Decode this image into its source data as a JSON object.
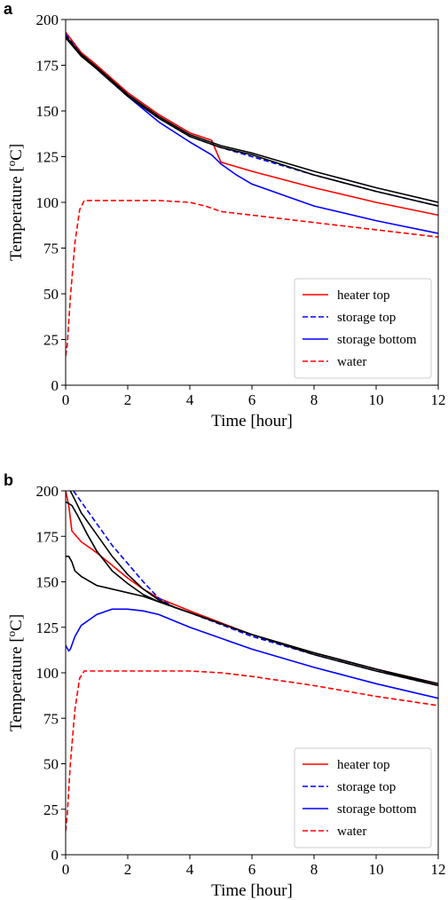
{
  "colors": {
    "red": "#ff0000",
    "blue": "#0000ff",
    "black": "#000000"
  },
  "chart_data": [
    {
      "panel_label": "a",
      "type": "line",
      "xlabel": "Time [hour]",
      "ylabel": "Temperature [°C]",
      "ylabel_main": "Temperature [",
      "ylabel_sup": "o",
      "ylabel_end": "C]",
      "xlim": [
        0,
        12
      ],
      "ylim": [
        0,
        200
      ],
      "xticks": [
        0,
        2,
        4,
        6,
        8,
        10,
        12
      ],
      "yticks": [
        0,
        25,
        50,
        75,
        100,
        125,
        150,
        175,
        200
      ],
      "legend_position": "lower-right",
      "series": [
        {
          "name": "heater top",
          "color": "red",
          "dash": "solid",
          "x": [
            0,
            0.5,
            1,
            2,
            3,
            4,
            4.7,
            5,
            6,
            8,
            10,
            12
          ],
          "y": [
            193,
            182,
            175,
            160,
            148,
            138,
            134,
            122,
            117,
            108,
            100,
            93
          ]
        },
        {
          "name": "storage top",
          "color": "blue",
          "dash": "dashed",
          "x": [
            0,
            0.5,
            1,
            2,
            3,
            4,
            5,
            6,
            8,
            10,
            12
          ],
          "y": [
            192,
            181,
            173,
            158,
            146,
            136,
            130,
            125,
            115,
            106,
            98
          ]
        },
        {
          "name": "storage bottom",
          "color": "blue",
          "dash": "solid",
          "x": [
            0,
            0.5,
            1,
            2,
            3,
            4,
            4.7,
            5,
            5.5,
            6,
            8,
            10,
            12
          ],
          "y": [
            190,
            181,
            173,
            158,
            144,
            133,
            126,
            121,
            115,
            110,
            98,
            90,
            83
          ]
        },
        {
          "name": "water",
          "color": "red",
          "dash": "dashed",
          "x": [
            0,
            0.05,
            0.15,
            0.3,
            0.45,
            0.6,
            1,
            2,
            3,
            4,
            4.5,
            5,
            6,
            8,
            10,
            12
          ],
          "y": [
            16,
            22,
            48,
            78,
            96,
            101,
            101,
            101,
            101,
            100,
            98,
            95,
            93,
            89,
            85,
            81
          ]
        },
        {
          "color": "black",
          "dash": "solid",
          "x": [
            0,
            0.5,
            1,
            2,
            3,
            4,
            5,
            6,
            8,
            10,
            12
          ],
          "y": [
            191,
            181,
            174,
            159,
            147,
            137,
            131,
            127,
            117,
            108,
            100
          ]
        },
        {
          "color": "black",
          "dash": "solid",
          "x": [
            0,
            0.5,
            1,
            2,
            3,
            4,
            5,
            6,
            8,
            10,
            12
          ],
          "y": [
            190,
            180,
            173,
            158,
            146,
            136,
            130,
            126,
            115,
            106,
            98
          ]
        }
      ]
    },
    {
      "panel_label": "b",
      "type": "line",
      "xlabel": "Time [hour]",
      "ylabel": "Temperature [°C]",
      "ylabel_main": "Temperature [",
      "ylabel_sup": "o",
      "ylabel_end": "C]",
      "xlim": [
        0,
        12
      ],
      "ylim": [
        0,
        200
      ],
      "xticks": [
        0,
        2,
        4,
        6,
        8,
        10,
        12
      ],
      "yticks": [
        0,
        25,
        50,
        75,
        100,
        125,
        150,
        175,
        200
      ],
      "legend_position": "lower-right",
      "series": [
        {
          "name": "heater top",
          "color": "red",
          "dash": "solid",
          "x": [
            0,
            0.1,
            0.2,
            0.5,
            1,
            1.5,
            2,
            2.5,
            3,
            4,
            6,
            8,
            10,
            12
          ],
          "y": [
            200,
            192,
            178,
            172,
            166,
            159,
            152,
            146,
            141,
            134,
            121,
            111,
            102,
            94
          ]
        },
        {
          "name": "storage top",
          "color": "blue",
          "dash": "dashed",
          "x": [
            0.25,
            0.5,
            1,
            1.5,
            2,
            2.5,
            3,
            3.5,
            4,
            6,
            8,
            10,
            12
          ],
          "y": [
            200,
            194,
            182,
            170,
            160,
            150,
            141,
            136,
            133,
            120,
            110,
            101,
            93
          ]
        },
        {
          "name": "storage bottom",
          "color": "blue",
          "dash": "solid",
          "x": [
            0,
            0.1,
            0.15,
            0.3,
            0.5,
            1,
            1.5,
            2,
            2.5,
            3,
            4,
            6,
            8,
            10,
            12
          ],
          "y": [
            115,
            112,
            113,
            120,
            126,
            132,
            135,
            135,
            134,
            132,
            125,
            113,
            103,
            94,
            86
          ]
        },
        {
          "name": "water",
          "color": "red",
          "dash": "dashed",
          "x": [
            0,
            0.05,
            0.15,
            0.3,
            0.45,
            0.6,
            1,
            2,
            3,
            4,
            5,
            6,
            8,
            10,
            12
          ],
          "y": [
            13,
            22,
            50,
            80,
            97,
            101,
            101,
            101,
            101,
            101,
            100,
            98,
            93,
            87,
            82
          ]
        },
        {
          "color": "black",
          "dash": "solid",
          "x": [
            0,
            0.2,
            0.4,
            0.7,
            1,
            1.5,
            2,
            2.5,
            3,
            4,
            6,
            8,
            10,
            12
          ],
          "y": [
            194,
            192,
            186,
            176,
            167,
            156,
            149,
            143,
            139,
            133,
            121,
            111,
            102,
            94
          ]
        },
        {
          "color": "black",
          "dash": "solid",
          "x": [
            0.15,
            0.3,
            0.5,
            1,
            1.5,
            2,
            2.5,
            3,
            3.5,
            4,
            6,
            8,
            10,
            12
          ],
          "y": [
            200,
            195,
            188,
            176,
            164,
            154,
            146,
            140,
            136,
            133,
            121,
            111,
            102,
            93
          ]
        },
        {
          "color": "black",
          "dash": "solid",
          "x": [
            0,
            0.1,
            0.2,
            0.3,
            0.5,
            0.8,
            1,
            1.5,
            2,
            2.5,
            3,
            4,
            6,
            8,
            10,
            12
          ],
          "y": [
            164,
            164,
            161,
            156,
            153,
            150,
            148,
            146,
            144,
            142,
            139,
            133,
            121,
            110,
            101,
            93
          ]
        }
      ]
    }
  ]
}
